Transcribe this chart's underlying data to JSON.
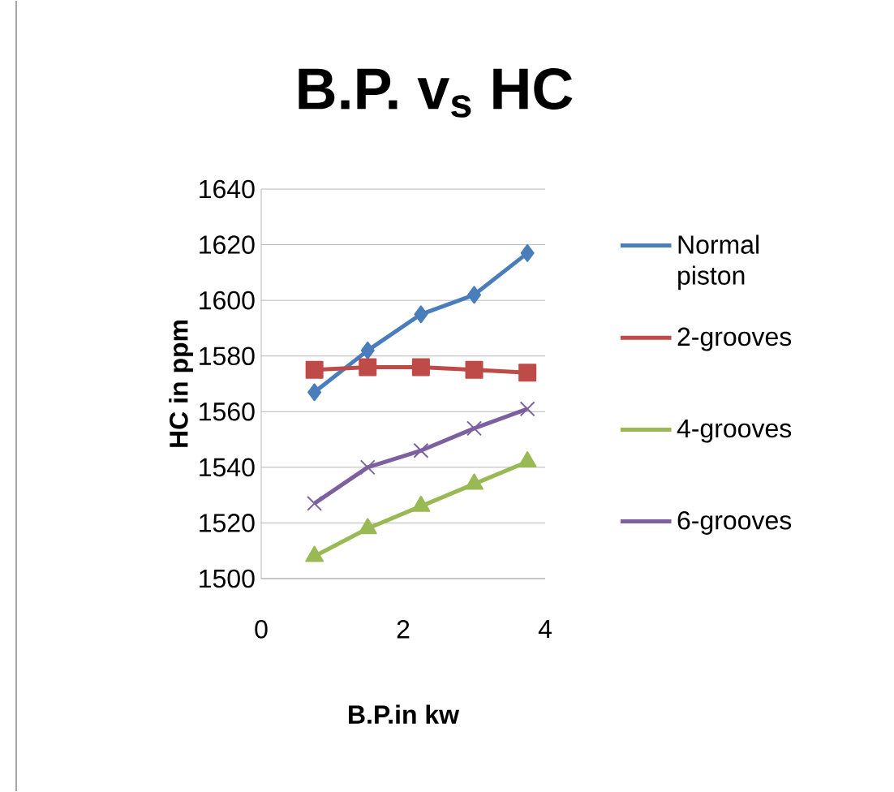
{
  "chart_data": {
    "type": "line",
    "title": "B.P. v$_{s}$ HC",
    "xlabel": "B.P.in kw",
    "ylabel": "HC in ppm",
    "x": [
      0.75,
      1.5,
      2.25,
      3.0,
      3.75
    ],
    "series": [
      {
        "name": "Normal piston",
        "color": "#4a7ebb",
        "marker": "diamond",
        "values": [
          1567,
          1582,
          1595,
          1602,
          1617
        ]
      },
      {
        "name": "2-grooves",
        "color": "#be4b48",
        "marker": "square",
        "values": [
          1575,
          1576,
          1576,
          1575,
          1574
        ]
      },
      {
        "name": "4-grooves",
        "color": "#98b954",
        "marker": "triangle",
        "values": [
          1508,
          1518,
          1526,
          1534,
          1542
        ]
      },
      {
        "name": "6-grooves",
        "color": "#7d60a0",
        "marker": "cross",
        "values": [
          1527,
          1540,
          1546,
          1554,
          1561
        ]
      }
    ],
    "xlim": [
      0,
      4
    ],
    "xticks": [
      0,
      2,
      4
    ],
    "ylim": [
      1500,
      1640
    ],
    "yticks": [
      1500,
      1520,
      1540,
      1560,
      1580,
      1600,
      1620,
      1640
    ],
    "grid": "y",
    "legend": "right",
    "line_style": "solid"
  }
}
